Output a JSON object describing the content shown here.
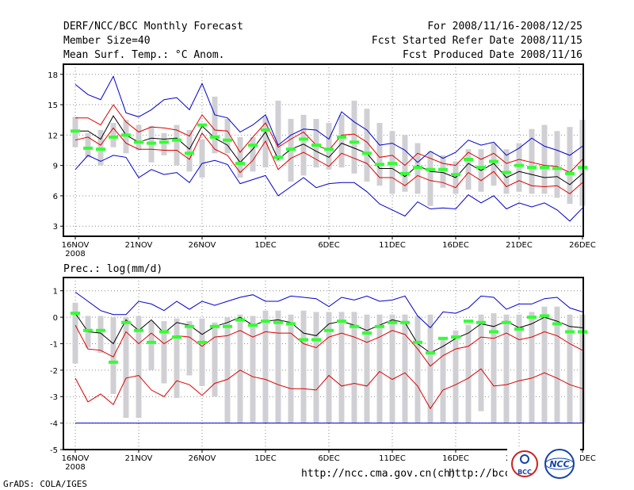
{
  "header": {
    "title": "DERF/NCC/BCC Monthly Forecast",
    "member": "Member Size=40",
    "variable": "Mean Surf. Temp.: °C Anom.",
    "period": "For 2008/11/16-2008/12/25",
    "started": "Fcst Started Refer Date 2008/11/15",
    "produced": "Fcst Produced Date 2008/11/16"
  },
  "footer": {
    "grads": "GrADS: COLA/IGES",
    "url1": "http://ncc.cma.gov.cn(ch)",
    "url2": "http://bcc.c",
    "logo1": "BCC",
    "logo2": "NCC"
  },
  "colors": {
    "blue": "#0000cc",
    "red": "#dd0000",
    "black": "#000000",
    "green": "#33ff33",
    "box": "#d0d0d4"
  },
  "chart_data": [
    {
      "type": "line",
      "title": "Mean Surf. Temp.: °C Anom.",
      "ylabel": "°C Anom.",
      "ylim": [
        2,
        19
      ],
      "yticks": [
        3,
        6,
        9,
        12,
        15,
        18
      ],
      "xticks": [
        {
          "day": 0,
          "label": "16NOV",
          "sub": "2008"
        },
        {
          "day": 5,
          "label": "21NOV"
        },
        {
          "day": 10,
          "label": "26NOV"
        },
        {
          "day": 15,
          "label": "1DEC"
        },
        {
          "day": 20,
          "label": "6DEC"
        },
        {
          "day": 25,
          "label": "11DEC"
        },
        {
          "day": 30,
          "label": "16DEC"
        },
        {
          "day": 35,
          "label": "21DEC"
        },
        {
          "day": 40,
          "label": "26DEC"
        }
      ],
      "series": [
        {
          "name": "max",
          "color": "blue",
          "values": [
            17.0,
            16.0,
            15.5,
            17.8,
            14.2,
            13.8,
            14.5,
            15.5,
            15.7,
            14.5,
            17.1,
            14.0,
            13.7,
            12.3,
            13.0,
            14.0,
            11.0,
            12.0,
            12.6,
            12.5,
            11.6,
            14.3,
            13.3,
            12.5,
            11.0,
            11.2,
            10.5,
            9.3,
            10.4,
            9.7,
            10.3,
            11.5,
            11.0,
            11.3,
            10.0,
            10.7,
            11.7,
            10.9,
            10.5,
            10.0,
            10.9
          ]
        },
        {
          "name": "upper",
          "color": "red",
          "values": [
            13.7,
            13.7,
            13.0,
            15.0,
            13.3,
            12.3,
            12.8,
            12.7,
            12.5,
            11.9,
            14.0,
            12.5,
            12.4,
            10.3,
            11.8,
            13.2,
            10.8,
            11.6,
            12.3,
            11.0,
            10.5,
            12.0,
            12.1,
            11.3,
            9.8,
            10.0,
            9.0,
            10.2,
            9.7,
            9.2,
            9.0,
            10.3,
            9.6,
            10.2,
            9.2,
            9.6,
            9.3,
            9.0,
            8.9,
            8.3,
            9.6
          ]
        },
        {
          "name": "mean",
          "color": "black",
          "values": [
            12.4,
            12.4,
            11.6,
            13.9,
            12.0,
            11.3,
            11.7,
            11.6,
            11.7,
            10.6,
            12.9,
            11.7,
            11.0,
            9.3,
            10.6,
            12.3,
            9.6,
            10.6,
            11.1,
            10.4,
            9.8,
            11.2,
            10.7,
            10.2,
            8.7,
            8.7,
            7.9,
            9.0,
            8.4,
            8.3,
            7.8,
            9.2,
            8.5,
            9.2,
            7.8,
            8.4,
            8.1,
            7.8,
            7.9,
            7.1,
            8.2
          ]
        },
        {
          "name": "lower",
          "color": "red",
          "values": [
            11.5,
            11.8,
            11.0,
            12.7,
            11.2,
            10.6,
            10.6,
            10.5,
            10.5,
            9.6,
            12.2,
            10.6,
            10.0,
            8.3,
            9.5,
            11.4,
            8.6,
            9.7,
            10.3,
            9.6,
            8.9,
            10.2,
            9.7,
            9.2,
            7.8,
            7.8,
            7.0,
            8.0,
            7.5,
            7.3,
            6.8,
            8.3,
            7.5,
            8.4,
            6.9,
            7.5,
            7.0,
            6.9,
            7.0,
            6.2,
            7.3
          ]
        },
        {
          "name": "min",
          "color": "blue",
          "values": [
            8.6,
            10.0,
            9.4,
            10.0,
            9.8,
            7.8,
            8.6,
            8.1,
            8.3,
            7.3,
            9.2,
            9.5,
            9.1,
            7.2,
            7.6,
            8.0,
            6.0,
            6.9,
            7.8,
            6.8,
            7.2,
            7.3,
            7.3,
            6.4,
            5.2,
            4.6,
            4.0,
            5.4,
            4.7,
            4.8,
            4.7,
            6.1,
            5.3,
            6.0,
            4.7,
            5.3,
            4.9,
            5.3,
            4.6,
            3.5,
            4.8
          ]
        }
      ],
      "boxes": [
        [
          10.8,
          13.8
        ],
        [
          9.8,
          12.2
        ],
        [
          9.0,
          12.5
        ],
        [
          10.8,
          13.2
        ],
        [
          10.2,
          13.5
        ],
        [
          10.5,
          13.0
        ],
        [
          9.3,
          12.9
        ],
        [
          10.0,
          12.2
        ],
        [
          9.0,
          13.0
        ],
        [
          8.4,
          12.5
        ],
        [
          7.8,
          11.6
        ],
        [
          10.2,
          15.8
        ],
        [
          10.2,
          13.6
        ],
        [
          7.8,
          11.8
        ],
        [
          8.4,
          11.8
        ],
        [
          8.8,
          13.8
        ],
        [
          9.4,
          15.4
        ],
        [
          7.4,
          13.6
        ],
        [
          8.0,
          14.0
        ],
        [
          8.8,
          13.6
        ],
        [
          8.6,
          13.2
        ],
        [
          8.8,
          14.0
        ],
        [
          8.2,
          15.4
        ],
        [
          7.4,
          14.6
        ],
        [
          7.0,
          13.2
        ],
        [
          6.2,
          12.4
        ],
        [
          6.4,
          12.0
        ],
        [
          6.2,
          11.2
        ],
        [
          5.0,
          10.4
        ],
        [
          6.8,
          10.0
        ],
        [
          6.2,
          9.4
        ],
        [
          6.6,
          10.6
        ],
        [
          6.4,
          10.6
        ],
        [
          7.0,
          11.2
        ],
        [
          6.2,
          10.6
        ],
        [
          6.4,
          11.2
        ],
        [
          6.2,
          12.6
        ],
        [
          6.2,
          13.0
        ],
        [
          5.8,
          12.4
        ],
        [
          5.2,
          12.8
        ],
        [
          5.0,
          13.5
        ]
      ],
      "medians": [
        12.4,
        10.7,
        10.6,
        11.8,
        12.0,
        11.3,
        11.2,
        11.3,
        11.5,
        10.2,
        13.0,
        11.8,
        11.5,
        9.2,
        11.0,
        12.5,
        9.8,
        10.6,
        11.6,
        11.0,
        10.6,
        11.8,
        11.3,
        10.2,
        9.1,
        9.2,
        8.2,
        8.8,
        8.6,
        8.6,
        8.1,
        9.6,
        8.8,
        9.4,
        8.3,
        9.0,
        8.8,
        8.8,
        8.7,
        8.2,
        8.8
      ]
    },
    {
      "type": "line",
      "title": "Prec.: log(mm/d)",
      "ylabel": "log(mm/d)",
      "ylim": [
        -5,
        1.5
      ],
      "yticks": [
        -5,
        -4,
        -3,
        -2,
        -1,
        0,
        1
      ],
      "xticks": [
        {
          "day": 0,
          "label": "16NOV",
          "sub": "2008"
        },
        {
          "day": 5,
          "label": "21NOV"
        },
        {
          "day": 10,
          "label": "26NOV"
        },
        {
          "day": 15,
          "label": "1DEC"
        },
        {
          "day": 20,
          "label": "6DEC"
        },
        {
          "day": 25,
          "label": "11DEC"
        },
        {
          "day": 30,
          "label": "16DEC"
        },
        {
          "day": 35,
          "label": "21DEC"
        },
        {
          "day": 40,
          "label": "26DEC"
        }
      ],
      "series": [
        {
          "name": "max",
          "color": "blue",
          "values": [
            0.95,
            0.6,
            0.25,
            0.1,
            0.1,
            0.6,
            0.5,
            0.25,
            0.6,
            0.3,
            0.6,
            0.45,
            0.6,
            0.75,
            0.85,
            0.6,
            0.6,
            0.8,
            0.75,
            0.7,
            0.4,
            0.75,
            0.65,
            0.8,
            0.6,
            0.65,
            0.8,
            0.05,
            -0.4,
            0.2,
            0.15,
            0.35,
            0.8,
            0.75,
            0.3,
            0.5,
            0.5,
            0.7,
            0.75,
            0.35,
            0.2
          ]
        },
        {
          "name": "mean",
          "color": "black",
          "values": [
            0.15,
            -0.55,
            -0.6,
            -1.0,
            -0.1,
            -0.5,
            -0.1,
            -0.6,
            -0.2,
            -0.3,
            -0.65,
            -0.35,
            -0.2,
            0.0,
            -0.3,
            -0.15,
            -0.1,
            -0.2,
            -0.6,
            -0.7,
            -0.25,
            -0.15,
            -0.3,
            -0.5,
            -0.3,
            -0.1,
            -0.2,
            -1.0,
            -1.35,
            -1.1,
            -0.8,
            -0.6,
            -0.25,
            -0.35,
            -0.15,
            -0.4,
            -0.25,
            0.0,
            -0.15,
            -0.35,
            -0.4
          ]
        },
        {
          "name": "upper",
          "color": "red",
          "values": [
            -0.3,
            -1.2,
            -1.25,
            -1.5,
            -0.55,
            -1.0,
            -0.6,
            -1.0,
            -0.7,
            -0.75,
            -1.1,
            -0.75,
            -0.7,
            -0.5,
            -0.75,
            -0.55,
            -0.6,
            -0.6,
            -1.0,
            -1.15,
            -0.75,
            -0.6,
            -0.75,
            -0.95,
            -0.75,
            -0.5,
            -0.65,
            -1.2,
            -1.85,
            -1.45,
            -1.2,
            -1.1,
            -0.75,
            -0.8,
            -0.6,
            -0.85,
            -0.75,
            -0.55,
            -0.7,
            -1.0,
            -1.25
          ]
        },
        {
          "name": "lower",
          "color": "red",
          "values": [
            -2.3,
            -3.2,
            -2.9,
            -3.3,
            -2.3,
            -2.2,
            -2.75,
            -3.0,
            -2.4,
            -2.55,
            -2.95,
            -2.5,
            -2.35,
            -2.0,
            -2.25,
            -2.35,
            -2.55,
            -2.7,
            -2.7,
            -2.75,
            -2.2,
            -2.6,
            -2.5,
            -2.6,
            -2.05,
            -2.35,
            -2.1,
            -2.6,
            -3.45,
            -2.75,
            -2.55,
            -2.3,
            -1.95,
            -2.6,
            -2.55,
            -2.4,
            -2.3,
            -2.1,
            -2.3,
            -2.55,
            -2.7
          ]
        },
        {
          "name": "min",
          "color": "blue",
          "values": [
            -4,
            -4,
            -4,
            -4,
            -4,
            -4,
            -4,
            -4,
            -4,
            -4,
            -4,
            -4,
            -4,
            -4,
            -4,
            -4,
            -4,
            -4,
            -4,
            -4,
            -4,
            -4,
            -4,
            -4,
            -4,
            -4,
            -4,
            -4,
            -4,
            -4,
            -4,
            -4,
            -4,
            -4,
            -4,
            -4,
            -4,
            -4,
            -4,
            -4,
            -4
          ]
        }
      ],
      "boxes": [
        [
          -1.75,
          0.55
        ],
        [
          -1.15,
          0.05
        ],
        [
          -1.35,
          0.05
        ],
        [
          -2.9,
          0.0
        ],
        [
          -3.8,
          0.0
        ],
        [
          -3.8,
          0.05
        ],
        [
          -2.0,
          -0.15
        ],
        [
          -2.5,
          -0.15
        ],
        [
          -3.05,
          -0.05
        ],
        [
          -2.2,
          -0.15
        ],
        [
          -2.6,
          -0.05
        ],
        [
          -3.0,
          -0.2
        ],
        [
          -4.0,
          0.0
        ],
        [
          -4.0,
          0.1
        ],
        [
          -4.0,
          0.05
        ],
        [
          -4.0,
          0.25
        ],
        [
          -4.0,
          0.25
        ],
        [
          -4.0,
          0.1
        ],
        [
          -4.0,
          0.25
        ],
        [
          -4.0,
          0.2
        ],
        [
          -4.0,
          0.2
        ],
        [
          -4.0,
          0.2
        ],
        [
          -4.0,
          0.2
        ],
        [
          -4.0,
          0.1
        ],
        [
          -4.0,
          0.1
        ],
        [
          -4.0,
          0.1
        ],
        [
          -4.0,
          0.1
        ],
        [
          -4.0,
          0.05
        ],
        [
          -4.0,
          0.1
        ],
        [
          -4.0,
          -0.8
        ],
        [
          -4.0,
          -0.5
        ],
        [
          -4.0,
          -0.3
        ],
        [
          -3.55,
          0.1
        ],
        [
          -4.0,
          0.15
        ],
        [
          -4.0,
          0.1
        ],
        [
          -4.0,
          0.1
        ],
        [
          -4.0,
          0.2
        ],
        [
          -4.0,
          0.4
        ],
        [
          -4.0,
          0.4
        ],
        [
          -4.0,
          0.1
        ],
        [
          -4.0,
          0.1
        ]
      ],
      "medians": [
        0.15,
        -0.5,
        -0.5,
        -1.7,
        -0.2,
        -0.5,
        -0.95,
        -0.55,
        -0.75,
        -0.35,
        -0.95,
        -0.35,
        -0.35,
        -0.1,
        -0.3,
        -0.15,
        -0.2,
        -0.25,
        -0.85,
        -0.85,
        -0.5,
        -0.15,
        -0.35,
        -0.6,
        -0.35,
        -0.2,
        -0.2,
        -0.95,
        -1.35,
        -0.8,
        -0.75,
        -0.15,
        -0.2,
        -0.55,
        -0.2,
        -0.45,
        0.0,
        0.05,
        -0.25,
        -0.55,
        -0.55
      ]
    }
  ]
}
